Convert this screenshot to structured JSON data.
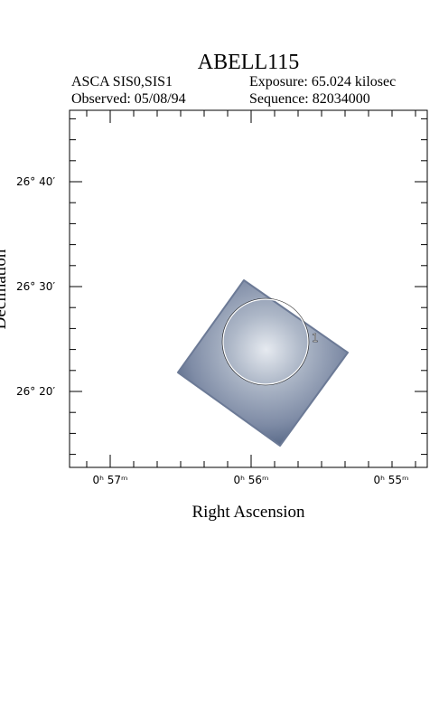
{
  "header": {
    "title": "ABELL115",
    "instrument": "ASCA SIS0,SIS1",
    "exposure": "Exposure: 65.024 kilosec",
    "observed": "Observed: 05/08/94",
    "sequence": "Sequence: 82034000"
  },
  "axes": {
    "x_label": "Right Ascension",
    "y_label": "Declination",
    "x_ticks": [
      "0ʰ 57ᵐ",
      "0ʰ 56ᵐ",
      "0ʰ 55ᵐ"
    ],
    "y_ticks": [
      "26° 40′",
      "26° 30′",
      "26° 20′"
    ]
  },
  "regions": [
    {
      "label": "1"
    }
  ]
}
